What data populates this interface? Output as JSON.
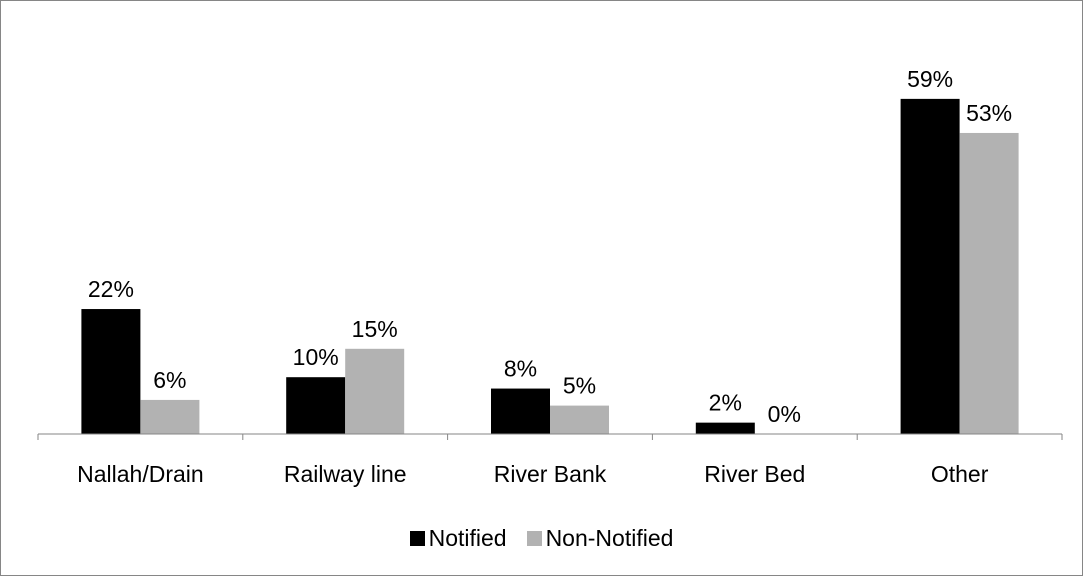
{
  "chart_data": {
    "type": "bar",
    "categories": [
      "Nallah/Drain",
      "Railway line",
      "River Bank",
      "River Bed",
      "Other"
    ],
    "series": [
      {
        "name": "Notified",
        "values": [
          22,
          10,
          8,
          2,
          59
        ],
        "labels": [
          "22%",
          "10%",
          "8%",
          "2%",
          "59%"
        ],
        "color": "#000000"
      },
      {
        "name": "Non-Notified",
        "values": [
          6,
          15,
          5,
          0,
          53
        ],
        "labels": [
          "6%",
          "15%",
          "5%",
          "0%",
          "53%"
        ],
        "color": "#b2b2b2"
      }
    ],
    "ylim": [
      0,
      65
    ],
    "grid": false,
    "legend_position": "bottom"
  }
}
